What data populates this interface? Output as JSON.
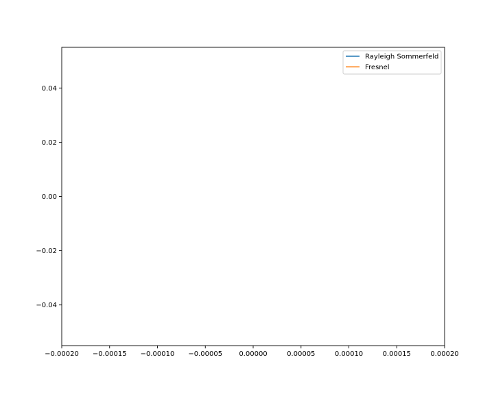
{
  "chart_data": {
    "type": "line",
    "title": "",
    "xlabel": "",
    "ylabel": "",
    "xlim": [
      -0.0002,
      0.0002
    ],
    "ylim": [
      -0.055,
      0.055
    ],
    "grid": false,
    "legend_position": "top-right",
    "x_ticks": [
      {
        "value": -0.0002,
        "label": "−0.00020"
      },
      {
        "value": -0.00015,
        "label": "−0.00015"
      },
      {
        "value": -0.0001,
        "label": "−0.00010"
      },
      {
        "value": -5e-05,
        "label": "−0.00005"
      },
      {
        "value": 0.0,
        "label": "0.00000"
      },
      {
        "value": 5e-05,
        "label": "0.00005"
      },
      {
        "value": 0.0001,
        "label": "0.00010"
      },
      {
        "value": 0.00015,
        "label": "0.00015"
      },
      {
        "value": 0.0002,
        "label": "0.00020"
      }
    ],
    "y_ticks": [
      {
        "value": 0.04,
        "label": "0.04"
      },
      {
        "value": 0.02,
        "label": "0.02"
      },
      {
        "value": 0.0,
        "label": "0.00"
      },
      {
        "value": -0.02,
        "label": "−0.02"
      },
      {
        "value": -0.04,
        "label": "−0.04"
      }
    ],
    "series": [
      {
        "name": "Rayleigh Sommerfeld",
        "color": "#1f77b4",
        "x": [],
        "y": []
      },
      {
        "name": "Fresnel",
        "color": "#ff7f0e",
        "x": [],
        "y": []
      }
    ]
  }
}
